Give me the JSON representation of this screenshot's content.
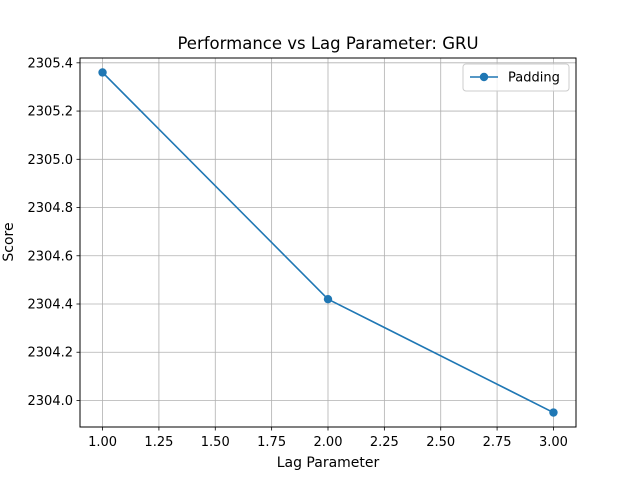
{
  "chart_data": {
    "type": "line",
    "title": "Performance vs Lag Parameter: GRU",
    "xlabel": "Lag Parameter",
    "ylabel": "Score",
    "xlim": [
      0.9,
      3.1
    ],
    "ylim": [
      2303.89,
      2305.42
    ],
    "xticks": [
      "1.00",
      "1.25",
      "1.50",
      "1.75",
      "2.00",
      "2.25",
      "2.50",
      "2.75",
      "3.00"
    ],
    "yticks": [
      "2304.0",
      "2304.2",
      "2304.4",
      "2304.6",
      "2304.8",
      "2305.0",
      "2305.2",
      "2305.4"
    ],
    "grid": true,
    "legend_position": "top-right",
    "series": [
      {
        "name": "Padding",
        "color": "#1f77b4",
        "marker": "circle",
        "x": [
          1.0,
          2.0,
          3.0
        ],
        "y": [
          2305.36,
          2304.42,
          2303.95
        ]
      }
    ]
  }
}
